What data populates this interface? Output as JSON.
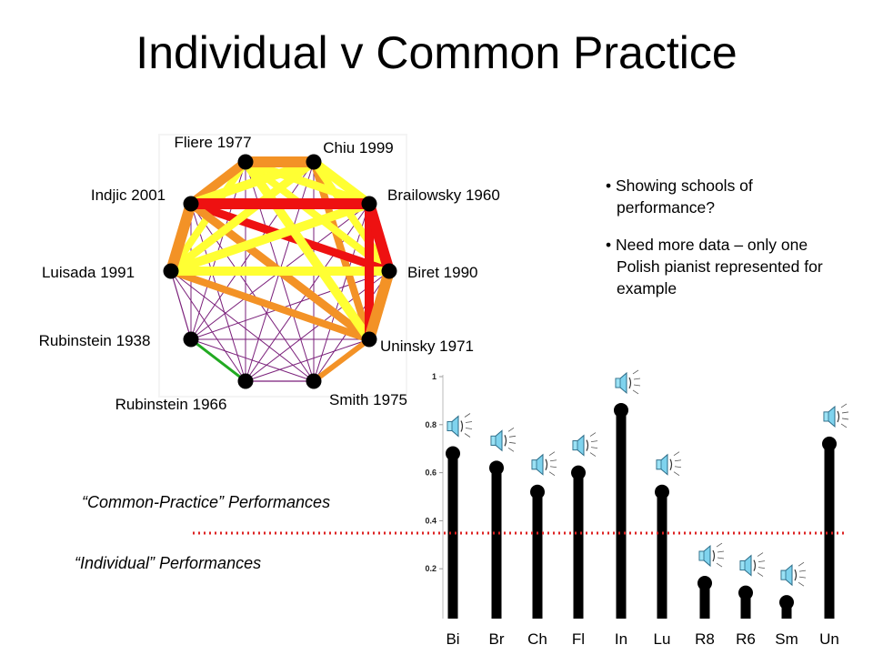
{
  "slide": {
    "title": "Individual v Common Practice",
    "bullets": [
      "• Showing schools of performance?",
      "• Need more data – only one Polish pianist represented for example"
    ],
    "caption_common": "“Common-Practice” Performances",
    "caption_individual": "“Individual” Performances"
  },
  "network": {
    "nodes": [
      {
        "id": "fliere",
        "label": "Fliere 1977"
      },
      {
        "id": "chiu",
        "label": "Chiu 1999"
      },
      {
        "id": "brail",
        "label": "Brailowsky 1960"
      },
      {
        "id": "biret",
        "label": "Biret 1990"
      },
      {
        "id": "uninsky",
        "label": "Uninsky 1971"
      },
      {
        "id": "smith",
        "label": "Smith 1975"
      },
      {
        "id": "rub66",
        "label": "Rubinstein 1966"
      },
      {
        "id": "rub38",
        "label": "Rubinstein 1938"
      },
      {
        "id": "luisada",
        "label": "Luisada 1991"
      },
      {
        "id": "indjic",
        "label": "Indjic 2001"
      }
    ],
    "edge_colors": {
      "red": "#ee1111",
      "orange": "#f39226",
      "yellow": "#ffff33",
      "blue": "#8b8bf0",
      "purple": "#7a1f7a",
      "green": "#22aa22"
    }
  },
  "chart_data": {
    "type": "bar",
    "style": "lollipop",
    "categories": [
      "Bi",
      "Br",
      "Ch",
      "Fl",
      "In",
      "Lu",
      "R8",
      "R6",
      "Sm",
      "Un"
    ],
    "values": [
      0.68,
      0.62,
      0.52,
      0.6,
      0.86,
      0.52,
      0.14,
      0.1,
      0.06,
      0.72
    ],
    "y_ticks": [
      "1",
      "0.8",
      "0.6",
      "0.4",
      "0.2"
    ],
    "ylim": [
      0,
      1
    ],
    "threshold": 0.35,
    "bar_color": "#000000",
    "threshold_color": "#dd2222",
    "audio_icons": true
  }
}
